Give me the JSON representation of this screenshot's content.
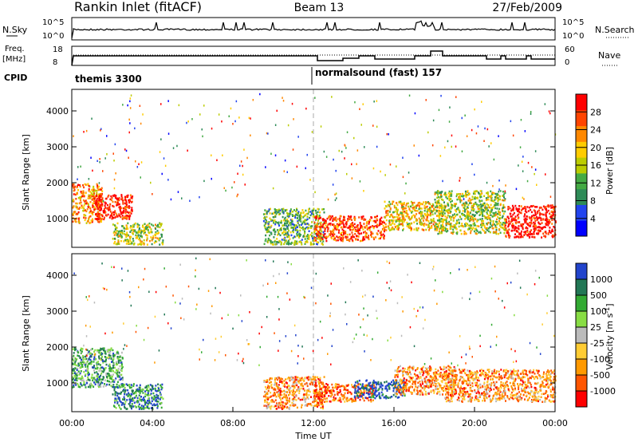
{
  "header": {
    "station": "Rankin Inlet (fitACF)",
    "beam": "Beam 13",
    "date": "27/Feb/2009"
  },
  "top_panels": {
    "nsky_label": "N.Sky",
    "nsky_tick_top": "10^5",
    "nsky_tick_bottom": "10^0",
    "nsearch_label": "N.Search",
    "nsearch_tick_top": "10^5",
    "nsearch_tick_bottom": "10^0",
    "freq_label": "Freq.",
    "freq_unit": "[MHz]",
    "freq_tick_top": "18",
    "freq_tick_bottom": "8",
    "nave_label": "Nave",
    "nave_tick_top": "60",
    "nave_tick_bottom": "0",
    "cpid_label": "CPID",
    "cpid_mode1": "themis 3300",
    "cpid_mode2": "normalsound (fast) 157"
  },
  "colors": {
    "power": [
      "#0000ff",
      "#2244ee",
      "#2e8b57",
      "#44aa44",
      "#bbcc00",
      "#ffcc00",
      "#ff8800",
      "#ff4400",
      "#ff0000"
    ],
    "velocity": [
      "#ff0000",
      "#ff5500",
      "#ff9900",
      "#ffcc33",
      "#bbbbbb",
      "#88dd44",
      "#33aa33",
      "#227755",
      "#2244cc"
    ]
  },
  "chart_data": [
    {
      "type": "heatmap",
      "quantity": "power",
      "ylabel": "Slant Range [km]",
      "yticks": [
        "1000",
        "2000",
        "3000",
        "4000"
      ],
      "ylim": [
        200,
        4600
      ],
      "colorbar_label": "Power [dB]",
      "colorbar_ticks": [
        "4",
        "8",
        "12",
        "16",
        "20",
        "24",
        "28"
      ],
      "colorbar_range": [
        0,
        32
      ],
      "blobs": [
        {
          "t": [
            0.0,
            1.5
          ],
          "r": [
            900,
            2000
          ],
          "level": 6
        },
        {
          "t": [
            1.0,
            3.0
          ],
          "r": [
            1000,
            1700
          ],
          "level": 8
        },
        {
          "t": [
            2.0,
            4.5
          ],
          "r": [
            300,
            900
          ],
          "level": 4
        },
        {
          "t": [
            9.5,
            12.5
          ],
          "r": [
            300,
            1300
          ],
          "level": 3
        },
        {
          "t": [
            12.0,
            15.5
          ],
          "r": [
            400,
            1100
          ],
          "level": 7
        },
        {
          "t": [
            15.5,
            18.5
          ],
          "r": [
            700,
            1500
          ],
          "level": 5
        },
        {
          "t": [
            18.0,
            21.5
          ],
          "r": [
            600,
            1800
          ],
          "level": 4
        },
        {
          "t": [
            21.5,
            24.0
          ],
          "r": [
            500,
            1400
          ],
          "level": 8
        }
      ]
    },
    {
      "type": "heatmap",
      "quantity": "velocity",
      "ylabel": "Slant Range [km]",
      "yticks": [
        "1000",
        "2000",
        "3000",
        "4000"
      ],
      "ylim": [
        200,
        4600
      ],
      "colorbar_label": "Velocity [m s",
      "colorbar_unit_exp": "-1",
      "colorbar_unit_end": "]",
      "colorbar_ticks": [
        "-1000",
        "-500",
        "-100",
        "-25",
        "25",
        "100",
        "500",
        "1000"
      ],
      "blobs": [
        {
          "t": [
            0.0,
            2.5
          ],
          "r": [
            900,
            2000
          ],
          "level": 6
        },
        {
          "t": [
            2.0,
            4.5
          ],
          "r": [
            300,
            1000
          ],
          "level": 7
        },
        {
          "t": [
            9.5,
            12.5
          ],
          "r": [
            300,
            1200
          ],
          "level": 2
        },
        {
          "t": [
            12.0,
            15.0
          ],
          "r": [
            500,
            1000
          ],
          "level": 1
        },
        {
          "t": [
            14.0,
            16.5
          ],
          "r": [
            600,
            1100
          ],
          "level": 8
        },
        {
          "t": [
            16.0,
            19.0
          ],
          "r": [
            700,
            1500
          ],
          "level": 2
        },
        {
          "t": [
            18.5,
            24.0
          ],
          "r": [
            500,
            1400
          ],
          "level": 2
        }
      ]
    }
  ],
  "xaxis": {
    "label": "Time UT",
    "ticks": [
      "00:00",
      "04:00",
      "08:00",
      "12:00",
      "16:00",
      "20:00",
      "00:00"
    ]
  }
}
